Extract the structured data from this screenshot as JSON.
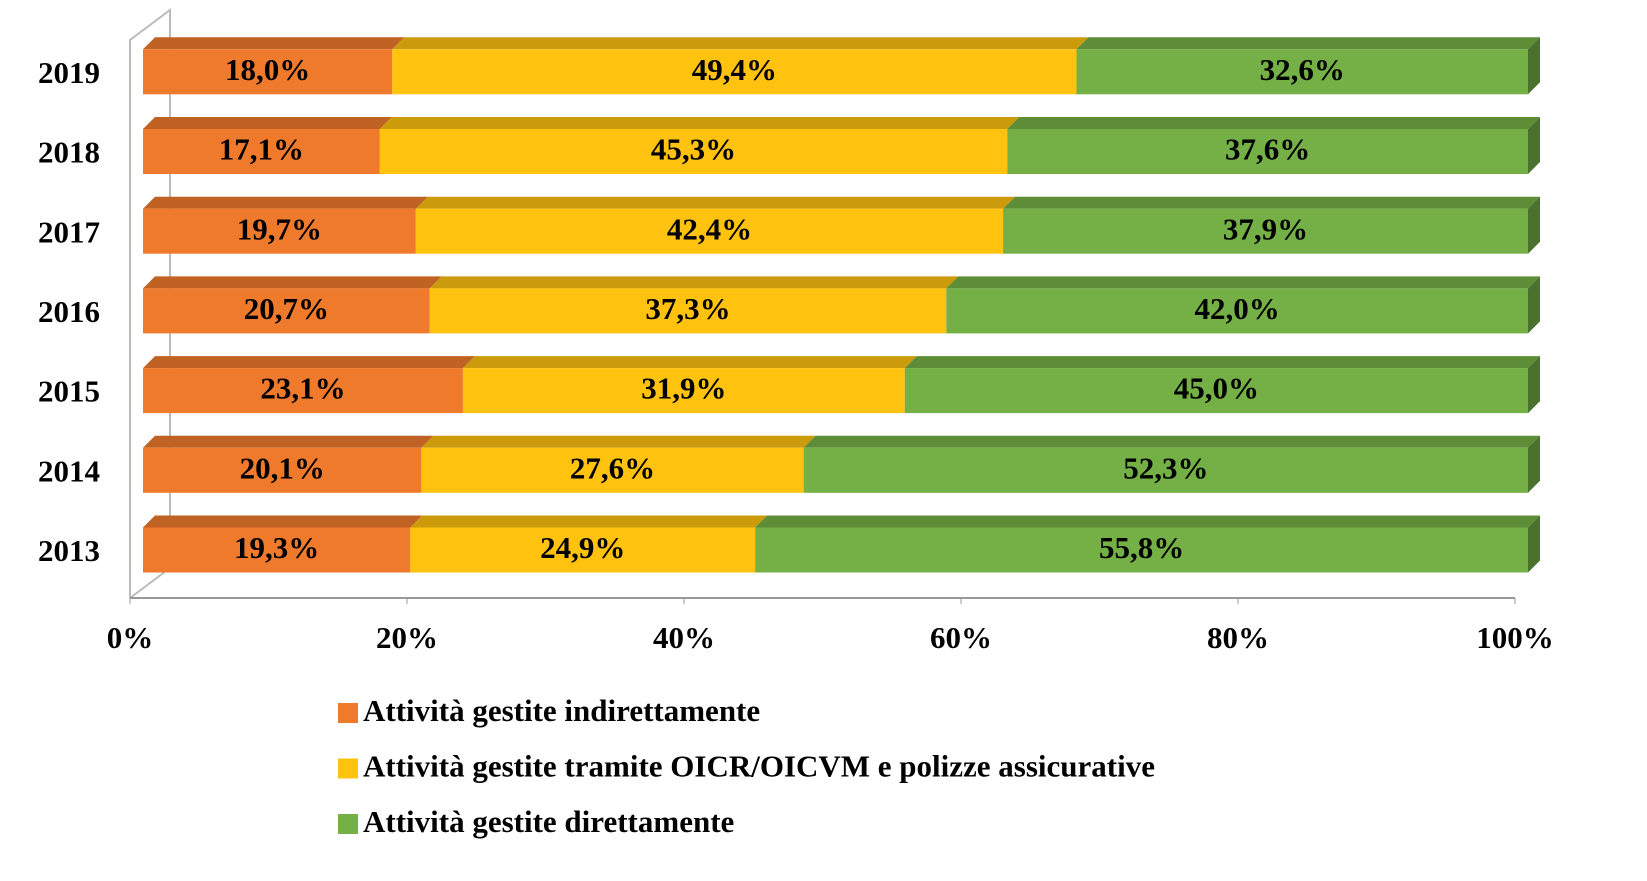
{
  "chart_data": {
    "type": "bar",
    "orientation": "horizontal",
    "stacked": true,
    "categories": [
      "2013",
      "2014",
      "2015",
      "2016",
      "2017",
      "2018",
      "2019"
    ],
    "series": [
      {
        "name": "Attività gestite indirettamente",
        "color": "#f07a2c",
        "values": [
          19.3,
          20.1,
          23.1,
          20.7,
          19.7,
          17.1,
          18.0
        ],
        "value_labels": [
          "19,3%",
          "20,1%",
          "23,1%",
          "20,7%",
          "19,7%",
          "17,1%",
          "18,0%"
        ]
      },
      {
        "name": "Attività gestite tramite OICR/OICVM e polizze assicurative",
        "color": "#ffc20e",
        "values": [
          24.9,
          27.6,
          31.9,
          37.3,
          42.4,
          45.3,
          49.4
        ],
        "value_labels": [
          "24,9%",
          "27,6%",
          "31,9%",
          "37,3%",
          "42,4%",
          "45,3%",
          "49,4%"
        ]
      },
      {
        "name": "Attività gestite direttamente",
        "color": "#74b045",
        "values": [
          55.8,
          52.3,
          45.0,
          42.0,
          37.9,
          37.6,
          32.6
        ],
        "value_labels": [
          "55,8%",
          "52,3%",
          "45,0%",
          "42,0%",
          "37,9%",
          "37,6%",
          "32,6%"
        ]
      }
    ],
    "xlim": [
      0,
      100
    ],
    "xticks": [
      {
        "value": 0,
        "label": "0%"
      },
      {
        "value": 20,
        "label": "20%"
      },
      {
        "value": 40,
        "label": "40%"
      },
      {
        "value": 60,
        "label": "60%"
      },
      {
        "value": 80,
        "label": "80%"
      },
      {
        "value": 100,
        "label": "100%"
      }
    ],
    "legend": "bottom"
  }
}
